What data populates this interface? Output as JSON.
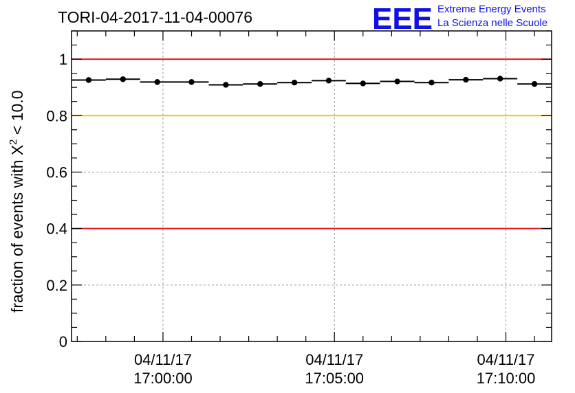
{
  "title": "TORI-04-2017-11-04-00076",
  "logo": {
    "letters": "EEE",
    "line1": "Extreme Energy Events",
    "line2": "La Scienza nelle Scuole",
    "color": "#1010e6"
  },
  "chart_data": {
    "type": "scatter",
    "title": "TORI-04-2017-11-04-00076",
    "ylabel": "fraction of events with X² < 10.0",
    "ylabel_parts": {
      "main": "fraction of events with X",
      "sup": "2",
      "tail": " < 10.0"
    },
    "xlabel": "",
    "ylim": [
      0,
      1.1
    ],
    "yticks": [
      0,
      0.2,
      0.4,
      0.6,
      0.8,
      1
    ],
    "ytick_labels": [
      "0",
      "0.2",
      "0.4",
      "0.6",
      "0.8",
      "1"
    ],
    "x_unit": "seconds after 04/11/17 16:57:20",
    "x_range_seconds": [
      0,
      840
    ],
    "x_ticks": [
      {
        "t": 160,
        "date": "04/11/17",
        "time": "17:00:00"
      },
      {
        "t": 460,
        "date": "04/11/17",
        "time": "17:05:00"
      },
      {
        "t": 760,
        "date": "04/11/17",
        "time": "17:10:00"
      }
    ],
    "grid": true,
    "reference_lines": [
      {
        "y": 1.0,
        "color": "#e11a1a"
      },
      {
        "y": 0.8,
        "color": "#f5c400"
      },
      {
        "y": 0.4,
        "color": "#e11a1a"
      }
    ],
    "bin_width_seconds": 60,
    "series": [
      {
        "x_bin_centers_seconds": [
          30,
          90,
          150,
          210,
          270,
          330,
          390,
          450,
          510,
          570,
          630,
          690,
          750,
          810
        ],
        "values": [
          0.926,
          0.929,
          0.919,
          0.919,
          0.909,
          0.912,
          0.917,
          0.924,
          0.914,
          0.921,
          0.917,
          0.927,
          0.931,
          0.912
        ]
      }
    ]
  }
}
